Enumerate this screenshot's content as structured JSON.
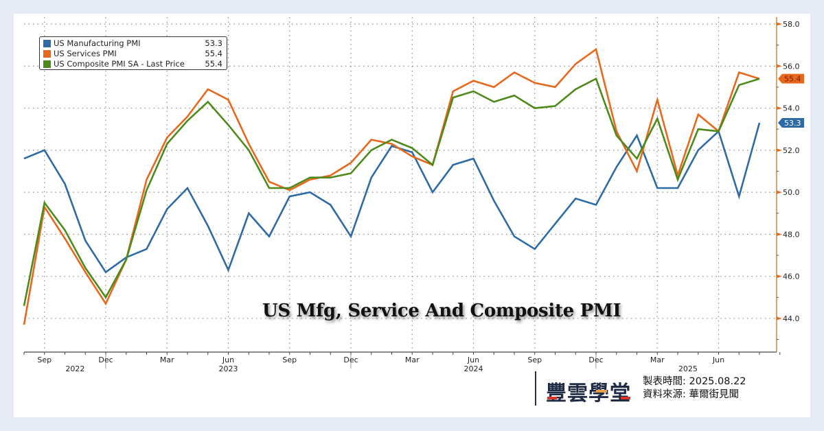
{
  "chart_data": {
    "type": "line",
    "title": "US Mfg, Service And Composite PMI",
    "xlabel": "",
    "ylabel": "",
    "ylim": [
      42.6,
      58.4
    ],
    "y_ticks": [
      "44.0",
      "46.0",
      "48.0",
      "50.0",
      "52.0",
      "54.0",
      "56.0",
      "58.0"
    ],
    "y_tick_values": [
      44,
      46,
      48,
      50,
      52,
      54,
      56,
      58
    ],
    "y_axis_position": "right",
    "grid": true,
    "legend_position": "top-left",
    "x": [
      "2022-08",
      "2022-09",
      "2022-10",
      "2022-11",
      "2022-12",
      "2023-01",
      "2023-02",
      "2023-03",
      "2023-04",
      "2023-05",
      "2023-06",
      "2023-07",
      "2023-08",
      "2023-09",
      "2023-10",
      "2023-11",
      "2023-12",
      "2024-01",
      "2024-02",
      "2024-03",
      "2024-04",
      "2024-05",
      "2024-06",
      "2024-07",
      "2024-08",
      "2024-09",
      "2024-10",
      "2024-11",
      "2024-12",
      "2025-01",
      "2025-02",
      "2025-03",
      "2025-04",
      "2025-05",
      "2025-06",
      "2025-07",
      "2025-08"
    ],
    "x_month_labels": [
      {
        "index": 1,
        "label": "Sep"
      },
      {
        "index": 4,
        "label": "Dec"
      },
      {
        "index": 7,
        "label": "Mar"
      },
      {
        "index": 10,
        "label": "Jun"
      },
      {
        "index": 13,
        "label": "Sep"
      },
      {
        "index": 16,
        "label": "Dec"
      },
      {
        "index": 19,
        "label": "Mar"
      },
      {
        "index": 22,
        "label": "Jun"
      },
      {
        "index": 25,
        "label": "Sep"
      },
      {
        "index": 28,
        "label": "Dec"
      },
      {
        "index": 31,
        "label": "Mar"
      },
      {
        "index": 34,
        "label": "Jun"
      }
    ],
    "x_year_labels": [
      {
        "index": 2.5,
        "label": "2022"
      },
      {
        "index": 10,
        "label": "2023"
      },
      {
        "index": 22,
        "label": "2024"
      },
      {
        "index": 32.5,
        "label": "2025"
      }
    ],
    "year_separators": [
      4.5,
      16.5,
      28.5
    ],
    "series": [
      {
        "name": "US Manufacturing PMI",
        "last_value": "53.3",
        "color": "#2e6aa6",
        "values": [
          51.6,
          52.0,
          50.4,
          47.7,
          46.2,
          46.9,
          47.3,
          49.2,
          50.2,
          48.4,
          46.3,
          49.0,
          47.9,
          49.8,
          50.0,
          49.4,
          47.9,
          50.7,
          52.2,
          51.9,
          50.0,
          51.3,
          51.6,
          49.6,
          47.9,
          47.3,
          48.5,
          49.7,
          49.4,
          51.2,
          52.7,
          50.2,
          50.2,
          52.0,
          52.9,
          49.8,
          53.3
        ]
      },
      {
        "name": "US Services PMI",
        "last_value": "55.4",
        "color": "#e8671c",
        "values": [
          43.7,
          49.3,
          47.8,
          46.2,
          44.7,
          46.8,
          50.6,
          52.6,
          53.6,
          54.9,
          54.4,
          52.3,
          50.5,
          50.1,
          50.6,
          50.8,
          51.4,
          52.5,
          52.3,
          51.7,
          51.3,
          54.8,
          55.3,
          55.0,
          55.7,
          55.2,
          55.0,
          56.1,
          56.8,
          52.9,
          51.0,
          54.4,
          50.8,
          53.7,
          52.9,
          55.7,
          55.4
        ]
      },
      {
        "name": "US Composite PMI SA - Last Price",
        "last_value": "55.4",
        "color": "#4e8a1a",
        "values": [
          44.6,
          49.5,
          48.2,
          46.4,
          45.0,
          46.8,
          50.1,
          52.3,
          53.4,
          54.3,
          53.2,
          52.0,
          50.2,
          50.2,
          50.7,
          50.7,
          50.9,
          52.0,
          52.5,
          52.1,
          51.3,
          54.5,
          54.8,
          54.3,
          54.6,
          54.0,
          54.1,
          54.9,
          55.4,
          52.7,
          51.6,
          53.5,
          50.6,
          53.0,
          52.9,
          55.1,
          55.4
        ]
      }
    ],
    "last_price_tags": [
      {
        "series": "US Services PMI",
        "label": "55.4",
        "value": 55.4,
        "color": "#e8671c"
      },
      {
        "series": "US Manufacturing PMI",
        "label": "53.3",
        "value": 53.3,
        "color": "#2e6aa6"
      }
    ]
  },
  "legend": {
    "items": [
      {
        "label": "US Manufacturing PMI",
        "value": "53.3",
        "color": "#2e6aa6"
      },
      {
        "label": "US Services PMI",
        "value": "55.4",
        "color": "#e8671c"
      },
      {
        "label": "US Composite PMI SA - Last Price",
        "value": "55.4",
        "color": "#4e8a1a"
      }
    ]
  },
  "footer": {
    "brand": "豐雲學堂",
    "made_label": "製表時間:",
    "made_date": "2025.08.22",
    "source_label": "資料來源:",
    "source_name": "華爾街見聞"
  },
  "colors": {
    "axis": "#c8883a",
    "tick": "#e8671c",
    "grid": "#888888",
    "background": "#e6ebf5"
  }
}
